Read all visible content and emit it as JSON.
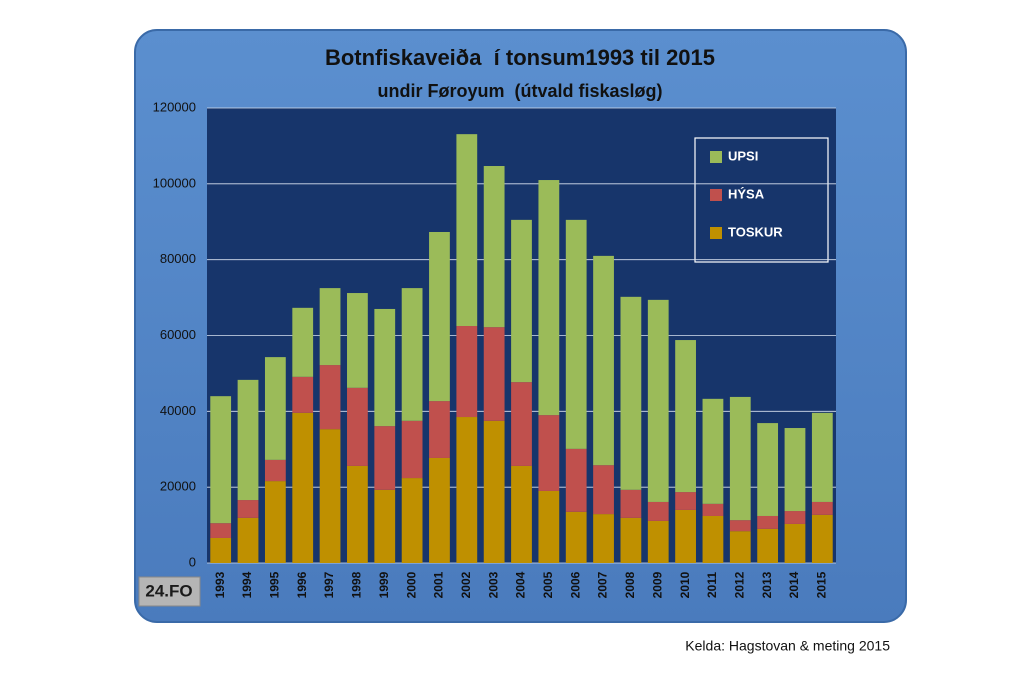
{
  "chart_data": {
    "type": "stacked-bar",
    "title": "Botnfiskaveiða  í tonsum1993 til 2015",
    "subtitle": "undir Føroyum  (útvald fiskasløg)",
    "logo": "24.FO",
    "source": "Kelda: Hagstovan & meting 2015",
    "categories": [
      "1993",
      "1994",
      "1995",
      "1996",
      "1997",
      "1998",
      "1999",
      "2000",
      "2001",
      "2002",
      "2003",
      "2004",
      "2005",
      "2006",
      "2007",
      "2008",
      "2009",
      "2010",
      "2011",
      "2012",
      "2013",
      "2014",
      "2015"
    ],
    "series": [
      {
        "name": "TOSKUR",
        "color": "#bf9000",
        "values": [
          6600,
          11900,
          21600,
          39600,
          35300,
          25600,
          19300,
          22400,
          27700,
          38500,
          37500,
          25600,
          19000,
          13500,
          12900,
          11900,
          11100,
          14000,
          12400,
          8400,
          9000,
          10300,
          12700
        ]
      },
      {
        "name": "HÝSA",
        "color": "#c0504d",
        "values": [
          3900,
          4700,
          5600,
          9500,
          16900,
          20600,
          16800,
          15100,
          15000,
          24000,
          24700,
          22100,
          20000,
          16600,
          12900,
          7400,
          5000,
          4700,
          3200,
          2900,
          3400,
          3400,
          3400
        ]
      },
      {
        "name": "UPSI",
        "color": "#9bbb59",
        "values": [
          33500,
          31700,
          27100,
          18200,
          20300,
          25000,
          30900,
          35000,
          44600,
          50600,
          42500,
          42800,
          62000,
          60400,
          55200,
          50900,
          53300,
          40100,
          27700,
          32500,
          24500,
          21900,
          23500
        ]
      }
    ],
    "ylim": [
      0,
      120000
    ],
    "yticks": [
      0,
      20000,
      40000,
      60000,
      80000,
      100000,
      120000
    ],
    "grid": true
  }
}
